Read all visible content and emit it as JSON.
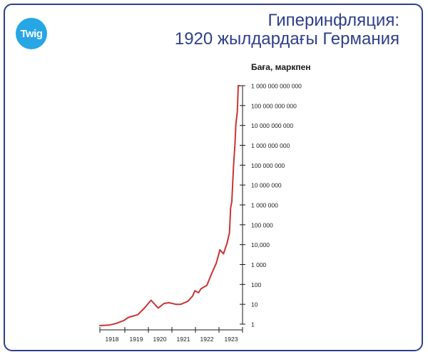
{
  "header": {
    "logo_text": "Twig",
    "title_line1": "Гиперинфляция:",
    "title_line2": "1920 жылдардағы Германия"
  },
  "colors": {
    "frame": "#2f3f8a",
    "title": "#2f3f8a",
    "logo_bg": "#27a6e6",
    "line": "#cc3333",
    "axis": "#1a1a1a"
  },
  "chart_data": {
    "type": "line",
    "title": "",
    "xlabel": "",
    "ylabel": "Баға, маркпен",
    "y_scale": "log",
    "ylim": [
      1,
      1000000000000
    ],
    "y_ticks": [
      {
        "value": 1,
        "label": "1"
      },
      {
        "value": 10,
        "label": "10"
      },
      {
        "value": 100,
        "label": "100"
      },
      {
        "value": 1000,
        "label": "1 000"
      },
      {
        "value": 10000,
        "label": "10,000"
      },
      {
        "value": 100000,
        "label": "100 000"
      },
      {
        "value": 1000000,
        "label": "1 000 000"
      },
      {
        "value": 10000000,
        "label": "10 000 000"
      },
      {
        "value": 100000000,
        "label": "100 000 000"
      },
      {
        "value": 1000000000,
        "label": "1 000 000 000"
      },
      {
        "value": 10000000000,
        "label": "10 000 000 000"
      },
      {
        "value": 100000000000,
        "label": "100 000 000 000"
      },
      {
        "value": 1000000000000,
        "label": "1 000 000 000 000"
      }
    ],
    "x_ticks": [
      "1918",
      "1919",
      "1920",
      "1921",
      "1922",
      "1923"
    ],
    "xlim": [
      1917.6,
      1923.6
    ],
    "grid": false,
    "series": [
      {
        "color": "#cc3333",
        "points": [
          {
            "x": 1917.6,
            "y": 0.85
          },
          {
            "x": 1918.0,
            "y": 0.9
          },
          {
            "x": 1918.3,
            "y": 1.1
          },
          {
            "x": 1918.6,
            "y": 1.5
          },
          {
            "x": 1918.8,
            "y": 2.2
          },
          {
            "x": 1919.2,
            "y": 3
          },
          {
            "x": 1919.5,
            "y": 7
          },
          {
            "x": 1919.75,
            "y": 16
          },
          {
            "x": 1920.05,
            "y": 6.5
          },
          {
            "x": 1920.3,
            "y": 11
          },
          {
            "x": 1920.5,
            "y": 12
          },
          {
            "x": 1920.8,
            "y": 10
          },
          {
            "x": 1921.0,
            "y": 10
          },
          {
            "x": 1921.3,
            "y": 14
          },
          {
            "x": 1921.5,
            "y": 26
          },
          {
            "x": 1921.6,
            "y": 48
          },
          {
            "x": 1921.75,
            "y": 38
          },
          {
            "x": 1921.85,
            "y": 60
          },
          {
            "x": 1922.1,
            "y": 90
          },
          {
            "x": 1922.3,
            "y": 350
          },
          {
            "x": 1922.5,
            "y": 1200
          },
          {
            "x": 1922.65,
            "y": 5500
          },
          {
            "x": 1922.8,
            "y": 3500
          },
          {
            "x": 1922.95,
            "y": 12000
          },
          {
            "x": 1923.05,
            "y": 40000
          },
          {
            "x": 1923.1,
            "y": 700000
          },
          {
            "x": 1923.15,
            "y": 1500000
          },
          {
            "x": 1923.22,
            "y": 80000000
          },
          {
            "x": 1923.28,
            "y": 1000000000
          },
          {
            "x": 1923.32,
            "y": 12000000000
          },
          {
            "x": 1923.38,
            "y": 50000000000
          },
          {
            "x": 1923.42,
            "y": 1000000000000
          },
          {
            "x": 1923.5,
            "y": 1000000000000
          }
        ]
      }
    ]
  }
}
